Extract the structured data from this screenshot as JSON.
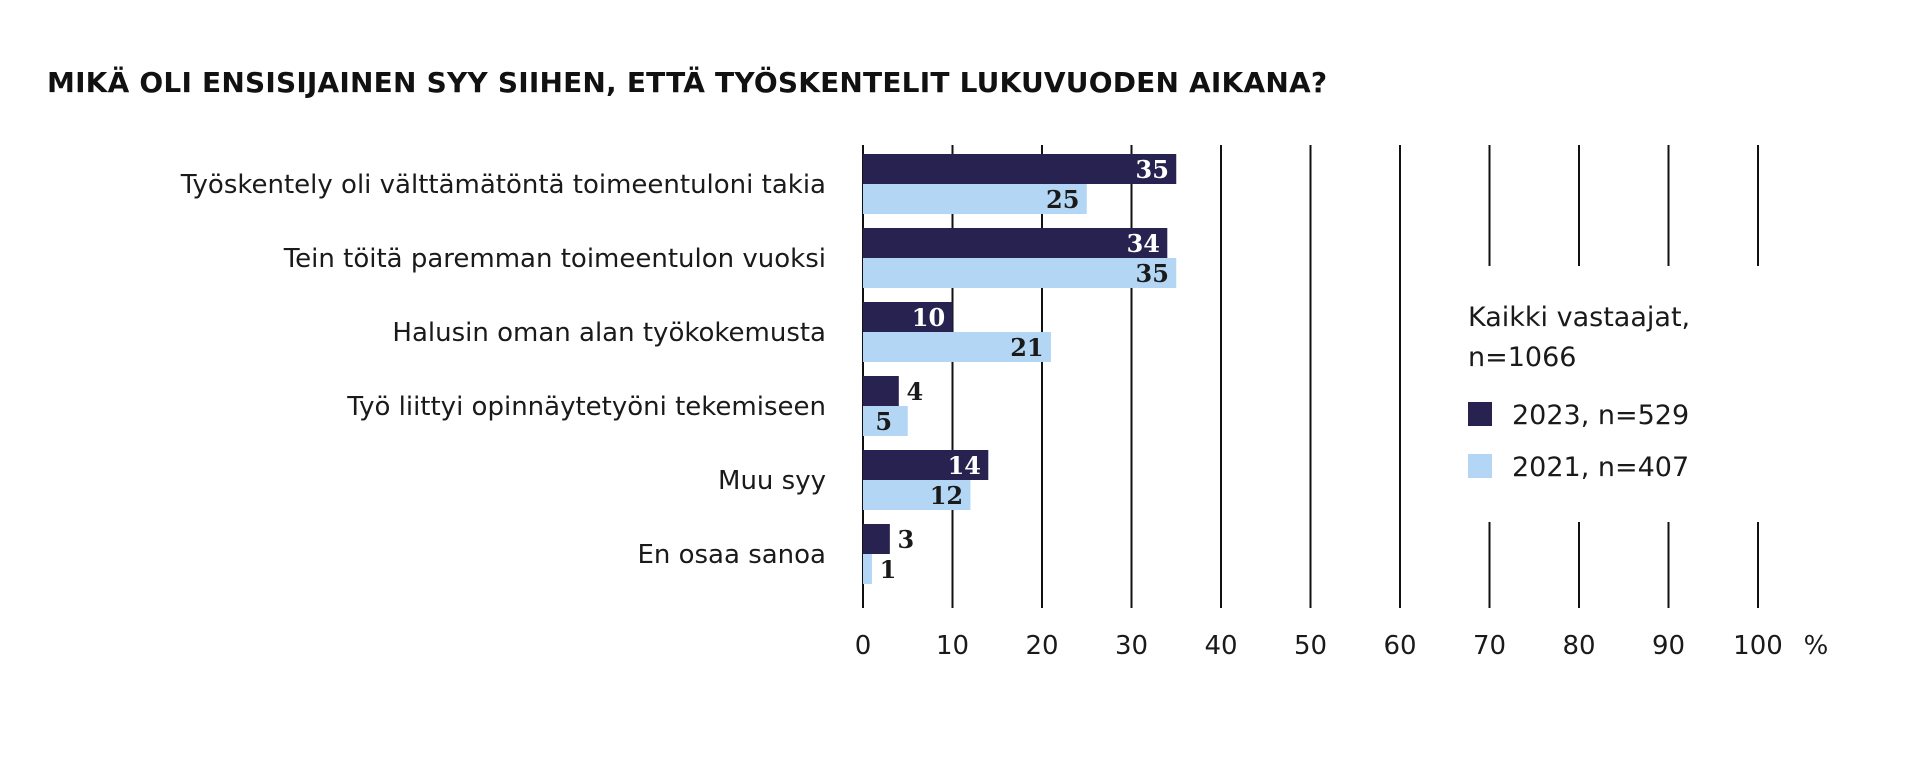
{
  "chart_data": {
    "type": "bar",
    "orientation": "horizontal",
    "title": "MIKÄ OLI ENSISIJAINEN SYY SIIHEN, ETTÄ TYÖSKENTELIT LUKUVUODEN AIKANA?",
    "categories": [
      "Työskentely oli välttämätöntä toimeentuloni takia",
      "Tein töitä paremman toimeentulon vuoksi",
      "Halusin oman alan työkokemusta",
      "Työ liittyi opinnäytetyöni tekemiseen",
      "Muu syy",
      "En osaa sanoa"
    ],
    "series": [
      {
        "name": "2023, n=529",
        "color": "#27224f",
        "values": [
          35,
          34,
          10,
          4,
          14,
          3
        ]
      },
      {
        "name": "2021, n=407",
        "color": "#b3d6f5",
        "values": [
          25,
          35,
          21,
          5,
          12,
          1
        ]
      }
    ],
    "xlim": [
      0,
      100
    ],
    "xticks": [
      "0",
      "10",
      "20",
      "30",
      "40",
      "50",
      "60",
      "70",
      "80",
      "90",
      "100"
    ],
    "xunit": "%",
    "grid": true,
    "legend": {
      "title_lines": [
        "Kaikki vastaajat,",
        "n=1066"
      ],
      "placement": "right"
    }
  }
}
